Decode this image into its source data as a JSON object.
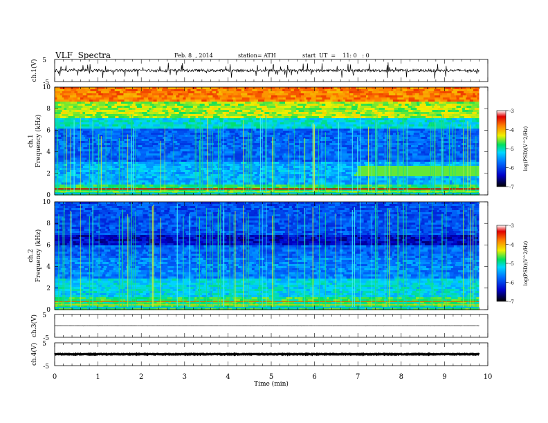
{
  "header": {
    "title": "VLF  Spectra",
    "date": "Feb. 8  , 2014",
    "station": "station= ATH",
    "start": "start  UT  =    11: 0   : 0"
  },
  "chart_data": [
    {
      "type": "line",
      "ylabel": "ch.1(V)",
      "ylim": [
        -5,
        5
      ],
      "y_ticks": [
        "5",
        "-5"
      ],
      "baseline": 0,
      "amplitude": 0.6,
      "spikes": "frequent",
      "color": "#000000"
    },
    {
      "type": "heatmap",
      "ylabel": "ch.1\nFrequency  (kHz)",
      "ylim": [
        0,
        10
      ],
      "y_ticks": [
        "0",
        "2",
        "4",
        "6",
        "8",
        "10"
      ],
      "xlim": [
        0,
        9.8
      ],
      "colorbar": {
        "label": "log(PSD)(V^2/Hz)",
        "range": [
          -7,
          -3
        ],
        "ticks": [
          "-3",
          "-4",
          "-5",
          "-6",
          "-7"
        ]
      },
      "features": "sferics as vertical streaks; intense narrow band below 1 kHz; band structure changes at ~6.9 min"
    },
    {
      "type": "heatmap",
      "ylabel": "ch.2\nFrequency  (kHz)",
      "ylim": [
        0,
        10
      ],
      "y_ticks": [
        "0",
        "2",
        "4",
        "6",
        "8",
        "10"
      ],
      "xlim": [
        0,
        9.8
      ],
      "colorbar": {
        "label": "log(PSD)(V^2/Hz)",
        "range": [
          -7,
          -3
        ],
        "ticks": [
          "-3",
          "-4",
          "-5",
          "-6",
          "-7"
        ]
      },
      "features": "mostly low power above 5 kHz with green streaks; stronger low-frequency bands"
    },
    {
      "type": "line",
      "ylabel": "ch.3(V)",
      "ylim": [
        -5,
        5
      ],
      "y_ticks": [
        "5",
        "-5"
      ],
      "baseline": 0,
      "amplitude": 0.05,
      "color": "#000000"
    },
    {
      "type": "line",
      "ylabel": "ch.4(V)",
      "ylim": [
        -5,
        5
      ],
      "y_ticks": [
        "5",
        "-5"
      ],
      "baseline": 0,
      "amplitude": 0.15,
      "thick": true,
      "color": "#000000"
    }
  ],
  "x_axis": {
    "label": "Time  (min)",
    "range": [
      0,
      10
    ],
    "data_end": 9.8,
    "ticks": [
      "0",
      "1",
      "2",
      "3",
      "4",
      "5",
      "6",
      "7",
      "8",
      "9",
      "10"
    ]
  }
}
